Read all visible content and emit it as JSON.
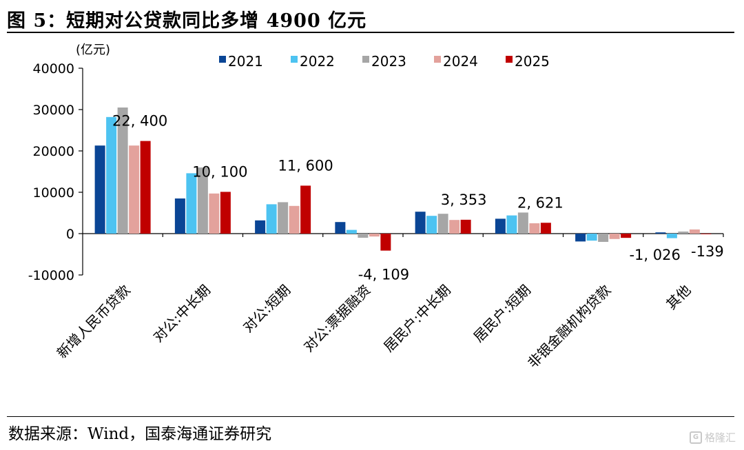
{
  "figure": {
    "title": "图 5：短期对公贷款同比多增 4900 亿元",
    "source": "数据来源：Wind，国泰海通证券研究",
    "watermark": "格隆汇"
  },
  "chart_data": {
    "type": "bar",
    "ylabel": "(亿元)",
    "ylim": [
      -10000,
      40000
    ],
    "yticks": [
      40000,
      30000,
      20000,
      10000,
      0,
      -10000
    ],
    "legend_position": "top",
    "categories": [
      "新增人民币贷款",
      "对公:中长期",
      "对公:短期",
      "对公:票据融资",
      "居民户:中长期",
      "居民户:短期",
      "非银金融机构贷款",
      "其他"
    ],
    "series": [
      {
        "name": "2021",
        "color": "#0a4595",
        "values": [
          21300,
          8500,
          3200,
          2800,
          5300,
          3600,
          -1900,
          300
        ]
      },
      {
        "name": "2022",
        "color": "#4dc3f1",
        "values": [
          28200,
          14600,
          7100,
          900,
          4300,
          4400,
          -1700,
          -1100
        ]
      },
      {
        "name": "2023",
        "color": "#a6a6a6",
        "values": [
          30500,
          16000,
          7600,
          -1000,
          4800,
          5100,
          -2000,
          500
        ]
      },
      {
        "name": "2024",
        "color": "#e3a29c",
        "values": [
          21300,
          9700,
          6700,
          -700,
          3300,
          2500,
          -1300,
          1000
        ]
      },
      {
        "name": "2025",
        "color": "#c00000",
        "values": [
          22400,
          10100,
          11600,
          -4109,
          3353,
          2621,
          -1026,
          -139
        ]
      }
    ],
    "annotations": [
      "22, 400",
      "10, 100",
      "11, 600",
      "-4, 109",
      "3, 353",
      "2, 621",
      "-1, 026",
      "-139"
    ]
  }
}
